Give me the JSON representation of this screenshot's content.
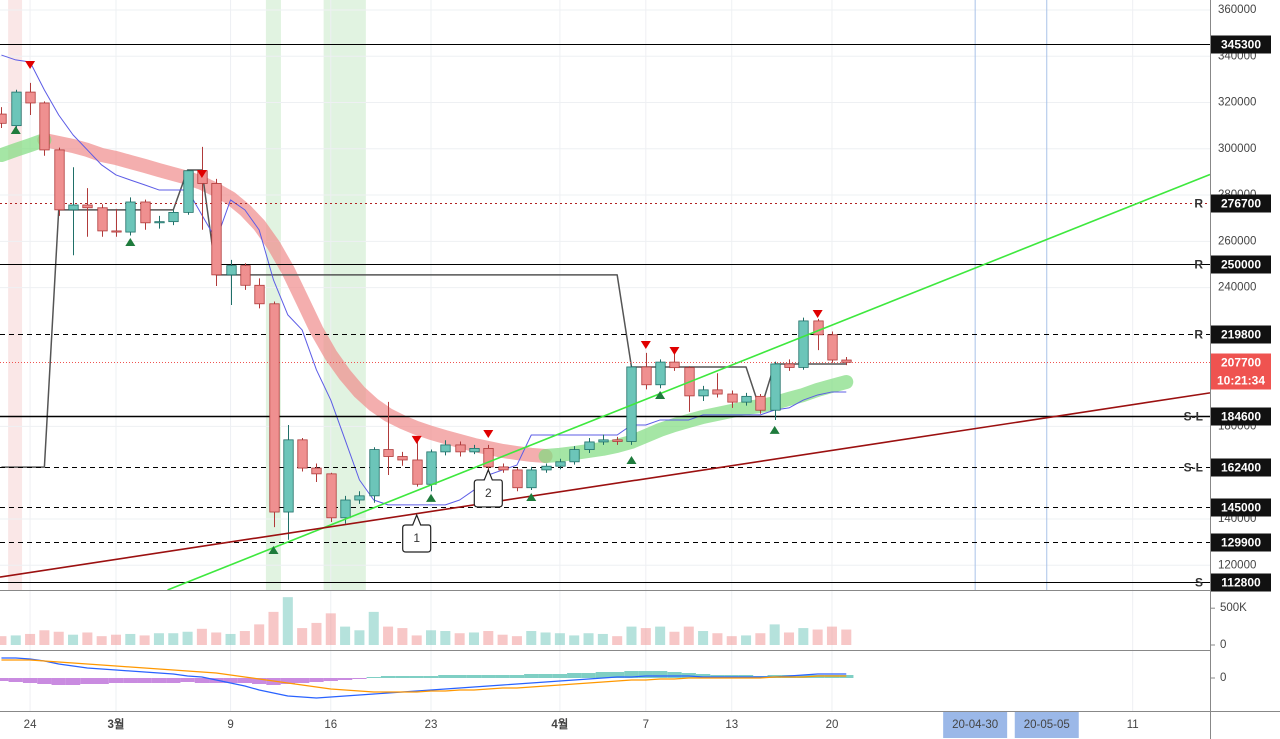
{
  "chart_data": {
    "type": "candlestick",
    "categories": [
      null,
      null,
      "24",
      null,
      null,
      null,
      null,
      null,
      "3월",
      null,
      null,
      null,
      null,
      null,
      null,
      null,
      "9",
      null,
      null,
      null,
      null,
      null,
      null,
      "16",
      null,
      null,
      null,
      null,
      null,
      null,
      "23",
      null,
      null,
      null,
      null,
      null,
      null,
      null,
      null,
      "4월",
      null,
      null,
      null,
      null,
      null,
      "7",
      null,
      null,
      null,
      null,
      null,
      "13",
      null,
      null,
      null,
      null,
      null,
      null,
      "20",
      null
    ],
    "xlim": [
      -0.1,
      84.4
    ],
    "future_xticks": [
      {
        "value": 79,
        "label": "11"
      }
    ],
    "date_markers": [
      {
        "value": 68,
        "label": "20-04-30"
      },
      {
        "value": 73,
        "label": "20-05-05"
      }
    ],
    "ylim": [
      109300,
      364300
    ],
    "yticks": [
      120000,
      140000,
      180000,
      240000,
      260000,
      280000,
      300000,
      320000,
      340000,
      360000
    ],
    "grid": true,
    "up_color": "#6cc5b9",
    "up_border": "#1f6f68",
    "down_color": "#ef9090",
    "down_border": "#b03a3a",
    "open": [
      315000,
      310000,
      324500,
      319800,
      299500,
      273600,
      275700,
      274500,
      264500,
      264000,
      277000,
      268000,
      268500,
      272500,
      290500,
      285000,
      245500,
      249500,
      241000,
      233000,
      143000,
      174200,
      162000,
      159500,
      140500,
      148200,
      150000,
      170000,
      167000,
      165500,
      155000,
      169000,
      172000,
      169000,
      170500,
      162500,
      161200,
      153500,
      161200,
      162800,
      164700,
      170000,
      173300,
      174200,
      173500,
      205700,
      198000,
      207800,
      205400,
      193200,
      195800,
      194000,
      190500,
      193000,
      187000,
      207000,
      205500,
      225600,
      219600,
      208700
    ],
    "high": [
      318000,
      325500,
      328500,
      320500,
      300500,
      292000,
      283000,
      276000,
      274000,
      279000,
      278000,
      271000,
      273500,
      291000,
      300800,
      287000,
      252000,
      250500,
      244000,
      234000,
      180600,
      175000,
      164000,
      160000,
      150000,
      152000,
      171000,
      190600,
      169000,
      175500,
      170000,
      174000,
      173500,
      172000,
      172000,
      164000,
      162000,
      162500,
      164000,
      166000,
      171500,
      175000,
      176500,
      175500,
      206500,
      211800,
      209000,
      212000,
      206000,
      197500,
      203000,
      195500,
      194500,
      194000,
      208000,
      209000,
      227000,
      226500,
      221000,
      210000
    ],
    "low": [
      309000,
      309000,
      314600,
      297000,
      271000,
      254000,
      262000,
      262000,
      262000,
      262500,
      265000,
      265500,
      267000,
      271500,
      265000,
      240700,
      232500,
      239000,
      231000,
      136500,
      131000,
      160500,
      156000,
      138700,
      138000,
      146500,
      147000,
      159000,
      163000,
      154000,
      152000,
      167500,
      167000,
      168000,
      161000,
      160000,
      152000,
      152500,
      160000,
      161500,
      163500,
      168500,
      172000,
      172000,
      172000,
      196000,
      196500,
      204000,
      186300,
      191000,
      192500,
      188000,
      189000,
      185500,
      182800,
      204000,
      204500,
      213000,
      207500,
      206500
    ],
    "close": [
      311000,
      324500,
      319800,
      299500,
      273600,
      275700,
      274500,
      264500,
      264000,
      277000,
      268000,
      268500,
      272500,
      290500,
      285000,
      245500,
      249500,
      241000,
      233000,
      143000,
      174200,
      162000,
      159500,
      140500,
      148200,
      150000,
      170000,
      167000,
      165500,
      155000,
      169000,
      172000,
      169000,
      170500,
      162500,
      161200,
      153500,
      161200,
      162800,
      164700,
      170000,
      173300,
      174200,
      173500,
      205700,
      198000,
      207800,
      205400,
      193200,
      195800,
      194000,
      190500,
      193000,
      187000,
      207000,
      205500,
      225600,
      219600,
      208700,
      207700
    ],
    "levels": [
      {
        "value": 345300,
        "style": "solid",
        "color": "#000000"
      },
      {
        "value": 276700,
        "style": "dotted",
        "color": "#b22222",
        "tag": "R",
        "tag_color": "#e53935"
      },
      {
        "value": 250000,
        "style": "solid",
        "color": "#000000",
        "tag": "R",
        "tag_color": "#e53935"
      },
      {
        "value": 219800,
        "style": "dashed",
        "color": "#000000",
        "tag": "R",
        "tag_color": "#e53935"
      },
      {
        "value": 184600,
        "style": "solid",
        "color": "#000000",
        "tag": "S-L",
        "tag_color": "#000000"
      },
      {
        "value": 162400,
        "style": "dashed",
        "color": "#000000",
        "tag": "S-L",
        "tag_color": "#000000"
      },
      {
        "value": 145000,
        "style": "dashed",
        "color": "#000000"
      },
      {
        "value": 129900,
        "style": "dashed",
        "color": "#000000"
      },
      {
        "value": 112800,
        "style": "solid",
        "color": "#000000",
        "tag": "S",
        "tag_color": "#1e6b3c"
      }
    ],
    "current_price": {
      "value": 207700,
      "countdown": "10:21:34",
      "color": "#ef5350"
    },
    "indicators": {
      "step": {
        "color": "#555555",
        "width": 1.5,
        "values": [
          162400,
          162400,
          162400,
          162400,
          273600,
          273600,
          273600,
          273600,
          273600,
          273600,
          273600,
          273600,
          273600,
          290800,
          290800,
          245500,
          245500,
          245500,
          245500,
          245500,
          245500,
          245500,
          245500,
          245500,
          245500,
          245500,
          245500,
          245500,
          245500,
          245500,
          245500,
          245500,
          245500,
          245500,
          245500,
          245500,
          245500,
          245500,
          245500,
          245500,
          245500,
          245500,
          245500,
          245500,
          205700,
          205700,
          205700,
          205700,
          205700,
          205700,
          205700,
          205700,
          205700,
          187000,
          207000,
          207000,
          207000,
          207000,
          207000,
          207000
        ]
      },
      "conversion": {
        "color": "#5c5ce6",
        "width": 1,
        "values": [
          340500,
          338400,
          337500,
          325400,
          314600,
          306000,
          299500,
          293000,
          288700,
          286500,
          284400,
          282200,
          282200,
          282200,
          271400,
          260600,
          277900,
          273600,
          264900,
          243300,
          228200,
          221700,
          204400,
          191400,
          174200,
          156900,
          148200,
          146100,
          146100,
          146100,
          146100,
          146100,
          148200,
          152500,
          159000,
          161200,
          163300,
          176300,
          176300,
          176300,
          176300,
          176300,
          176300,
          176300,
          180600,
          180600,
          182800,
          182800,
          182800,
          185000,
          185000,
          185000,
          185000,
          185000,
          187100,
          188000,
          191400,
          193600,
          194900,
          194900
        ]
      },
      "band_down": {
        "color": "#f08c8c",
        "width": 14,
        "values": [
          null,
          null,
          null,
          303800,
          302500,
          301200,
          299500,
          297300,
          296000,
          294300,
          292600,
          290800,
          289100,
          287400,
          285200,
          282200,
          278700,
          273600,
          267100,
          258400,
          247600,
          234700,
          221700,
          210900,
          202200,
          194900,
          189300,
          185000,
          181900,
          179300,
          177200,
          175400,
          173700,
          172000,
          170700,
          169400,
          168500,
          167700,
          167200,
          null,
          null,
          null,
          null,
          null,
          null,
          null,
          null,
          null,
          null,
          null,
          null,
          null,
          null,
          null,
          null,
          null,
          null,
          null,
          null,
          null
        ]
      },
      "band_up": {
        "color": "#7fdc7f",
        "width": 14,
        "values": [
          297300,
          299500,
          301600,
          303800,
          null,
          null,
          null,
          null,
          null,
          null,
          null,
          null,
          null,
          null,
          null,
          null,
          null,
          null,
          null,
          null,
          null,
          null,
          null,
          null,
          null,
          null,
          null,
          null,
          null,
          null,
          null,
          null,
          null,
          null,
          null,
          null,
          null,
          null,
          167200,
          167700,
          168500,
          169400,
          170300,
          171600,
          173300,
          175900,
          178500,
          180600,
          182400,
          184100,
          185400,
          186700,
          188000,
          188800,
          190100,
          191900,
          193600,
          195800,
          197500,
          199200
        ]
      }
    },
    "trendlines": [
      {
        "color": "#3ee83e",
        "x": [
          11.6,
          84.4
        ],
        "y": [
          109300,
          288900
        ]
      },
      {
        "color": "#9b1010",
        "x": [
          -0.1,
          84.4
        ],
        "y": [
          114900,
          194500
        ]
      }
    ],
    "highlights": [
      {
        "x": [
          0.47,
          1.44
        ],
        "color": "rgba(230,120,120,0.18)"
      },
      {
        "x": [
          18.47,
          19.52
        ],
        "color": "rgba(120,200,120,0.22)"
      },
      {
        "x": [
          22.5,
          25.45
        ],
        "color": "rgba(120,200,120,0.22)"
      }
    ],
    "signals": {
      "sell": {
        "color": "#e00000",
        "x": [
          2,
          14,
          29,
          34,
          45,
          47,
          57
        ],
        "y": [
          336200,
          289100,
          174200,
          176700,
          215200,
          212600,
          228600
        ]
      },
      "buy": {
        "color": "#1e7b3c",
        "x": [
          1,
          9,
          19,
          30,
          37,
          44,
          46,
          54
        ],
        "y": [
          308100,
          259700,
          126600,
          149100,
          149500,
          165500,
          193600,
          178500
        ]
      }
    },
    "callouts": [
      {
        "label": "1",
        "x": 29,
        "y": 141700
      },
      {
        "label": "2",
        "x": 34,
        "y": 161200
      }
    ],
    "volume": {
      "ylim": [
        0,
        720000
      ],
      "yticks": [
        0,
        {
          "value": 500000,
          "label": "500K"
        }
      ],
      "values": [
        120000,
        130000,
        150000,
        200000,
        180000,
        140000,
        170000,
        120000,
        140000,
        150000,
        130000,
        160000,
        160000,
        180000,
        220000,
        170000,
        150000,
        190000,
        280000,
        450000,
        650000,
        230000,
        300000,
        430000,
        250000,
        200000,
        450000,
        250000,
        230000,
        130000,
        200000,
        190000,
        160000,
        170000,
        190000,
        140000,
        120000,
        190000,
        170000,
        160000,
        130000,
        160000,
        150000,
        120000,
        250000,
        230000,
        250000,
        180000,
        250000,
        190000,
        160000,
        120000,
        130000,
        160000,
        280000,
        170000,
        230000,
        210000,
        250000,
        210000
      ]
    },
    "macd": {
      "ylim": [
        -34,
        26
      ],
      "yticks": [
        0
      ],
      "pos_color": "#7fcfc4",
      "neg_color": "#c98be0",
      "histogram": [
        -3,
        -4,
        -5,
        -6,
        -7,
        -7,
        -6,
        -6,
        -5,
        -5,
        -5,
        -5,
        -5,
        -4,
        -5,
        -5,
        -5,
        -5,
        -6,
        -7,
        -6,
        -5,
        -4,
        -3,
        -2,
        -1,
        1,
        2,
        2,
        2,
        2,
        3,
        3,
        3,
        3,
        3,
        3,
        4,
        4,
        4,
        5,
        5,
        6,
        6,
        7,
        7,
        7,
        6,
        5,
        4,
        3,
        3,
        3,
        2,
        3,
        3,
        3,
        3,
        3,
        3
      ],
      "macd": {
        "color": "#2962ff",
        "values": [
          20,
          20,
          19,
          17,
          14,
          12,
          10,
          9,
          8,
          7,
          6,
          5,
          4,
          2,
          1,
          -2,
          -5,
          -8,
          -12,
          -15,
          -18,
          -19,
          -20,
          -19,
          -18,
          -17,
          -16,
          -15,
          -14,
          -13,
          -12,
          -11,
          -10,
          -9,
          -8,
          -7,
          -6,
          -5,
          -4,
          -3,
          -2,
          -1,
          0,
          1,
          1,
          2,
          2,
          2,
          2,
          1,
          1,
          1,
          1,
          1,
          1,
          2,
          3,
          4,
          4,
          4
        ]
      },
      "signal": {
        "color": "#ff9800",
        "values": [
          18,
          18,
          18,
          17,
          16,
          15,
          14,
          13,
          12,
          11,
          10,
          9,
          8,
          7,
          6,
          5,
          3,
          1,
          -1,
          -3,
          -5,
          -7,
          -9,
          -11,
          -12,
          -13,
          -14,
          -14,
          -14,
          -14,
          -13,
          -13,
          -12,
          -12,
          -11,
          -10,
          -10,
          -9,
          -8,
          -7,
          -6,
          -5,
          -4,
          -3,
          -2,
          -2,
          -1,
          -1,
          0,
          0,
          0,
          0,
          0,
          0,
          1,
          1,
          1,
          2,
          2,
          2
        ]
      }
    }
  }
}
